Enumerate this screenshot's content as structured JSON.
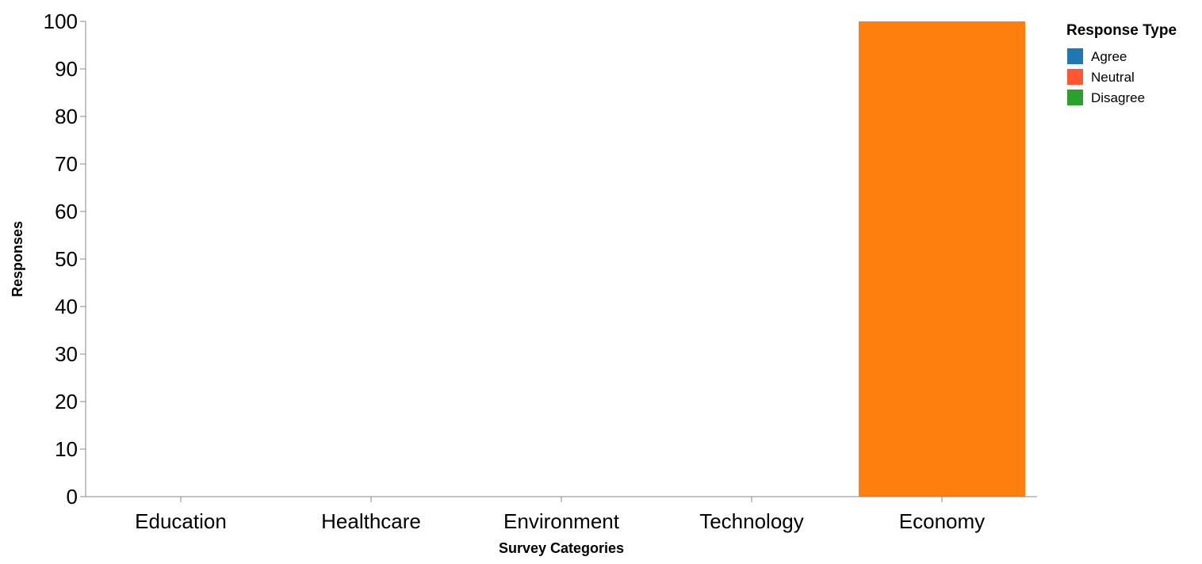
{
  "chart_data": {
    "type": "bar",
    "categories": [
      "Education",
      "Healthcare",
      "Environment",
      "Technology",
      "Economy"
    ],
    "bars": [
      {
        "category": "Economy",
        "value": 100,
        "color": "#ff7f0e"
      }
    ],
    "xlabel": "Survey Categories",
    "ylabel": "Responses",
    "ylim": [
      0,
      100
    ],
    "yticks": [
      0,
      10,
      20,
      30,
      40,
      50,
      60,
      70,
      80,
      90,
      100
    ],
    "grid": false,
    "legend": {
      "title": "Response Type",
      "position": "top-right",
      "items": [
        {
          "label": "Agree",
          "color": "#1f77b4"
        },
        {
          "label": "Neutral",
          "color": "#ff5733"
        },
        {
          "label": "Disagree",
          "color": "#2ca02c"
        }
      ]
    }
  }
}
